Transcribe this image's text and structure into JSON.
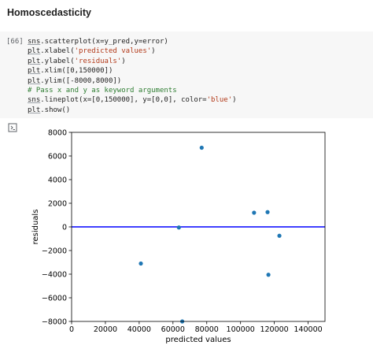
{
  "notebook": {
    "section_title": "Homoscedasticity",
    "cell": {
      "prompt": "[66]",
      "lines": [
        {
          "kind": "code",
          "parts": [
            {
              "t": "sns",
              "c": "ident"
            },
            {
              "t": ".scatterplot(x=y_pred,y=error)"
            }
          ]
        },
        {
          "kind": "code",
          "parts": [
            {
              "t": "plt",
              "c": "ident"
            },
            {
              "t": ".xlabel("
            },
            {
              "t": "'predicted values'",
              "c": "str"
            },
            {
              "t": ")"
            }
          ]
        },
        {
          "kind": "code",
          "parts": [
            {
              "t": "plt",
              "c": "ident"
            },
            {
              "t": ".ylabel("
            },
            {
              "t": "'residuals'",
              "c": "str"
            },
            {
              "t": ")"
            }
          ]
        },
        {
          "kind": "code",
          "parts": [
            {
              "t": "plt",
              "c": "ident"
            },
            {
              "t": ".xlim([0,150000])"
            }
          ]
        },
        {
          "kind": "code",
          "parts": [
            {
              "t": "plt",
              "c": "ident"
            },
            {
              "t": ".ylim([-8000,8000])"
            }
          ]
        },
        {
          "kind": "comment",
          "parts": [
            {
              "t": "# Pass x and y as keyword arguments",
              "c": "comment"
            }
          ]
        },
        {
          "kind": "code",
          "parts": [
            {
              "t": "sns",
              "c": "ident"
            },
            {
              "t": ".lineplot(x=[0,150000], y=[0,0], color="
            },
            {
              "t": "'blue'",
              "c": "str"
            },
            {
              "t": ")"
            }
          ]
        },
        {
          "kind": "code",
          "parts": [
            {
              "t": "plt",
              "c": "ident"
            },
            {
              "t": ".show()"
            }
          ]
        }
      ]
    },
    "output_icon": "output-toggle-icon"
  },
  "chart_data": {
    "type": "scatter",
    "xlabel": "predicted values",
    "ylabel": "residuals",
    "xlim": [
      0,
      150000
    ],
    "ylim": [
      -8000,
      8000
    ],
    "xticks": [
      0,
      20000,
      40000,
      60000,
      80000,
      100000,
      120000,
      140000
    ],
    "yticks": [
      -8000,
      -6000,
      -4000,
      -2000,
      0,
      2000,
      4000,
      6000,
      8000
    ],
    "grid": false,
    "points": [
      {
        "x": 41000,
        "y": -3100
      },
      {
        "x": 63500,
        "y": -50
      },
      {
        "x": 65500,
        "y": -8000
      },
      {
        "x": 77000,
        "y": 6700
      },
      {
        "x": 108000,
        "y": 1200
      },
      {
        "x": 116000,
        "y": 1250
      },
      {
        "x": 116500,
        "y": -4050
      },
      {
        "x": 123000,
        "y": -750
      }
    ],
    "point_color": "#1f77b4",
    "reference_line": {
      "x": [
        0,
        150000
      ],
      "y": [
        0,
        0
      ],
      "color": "#0000ff"
    }
  }
}
